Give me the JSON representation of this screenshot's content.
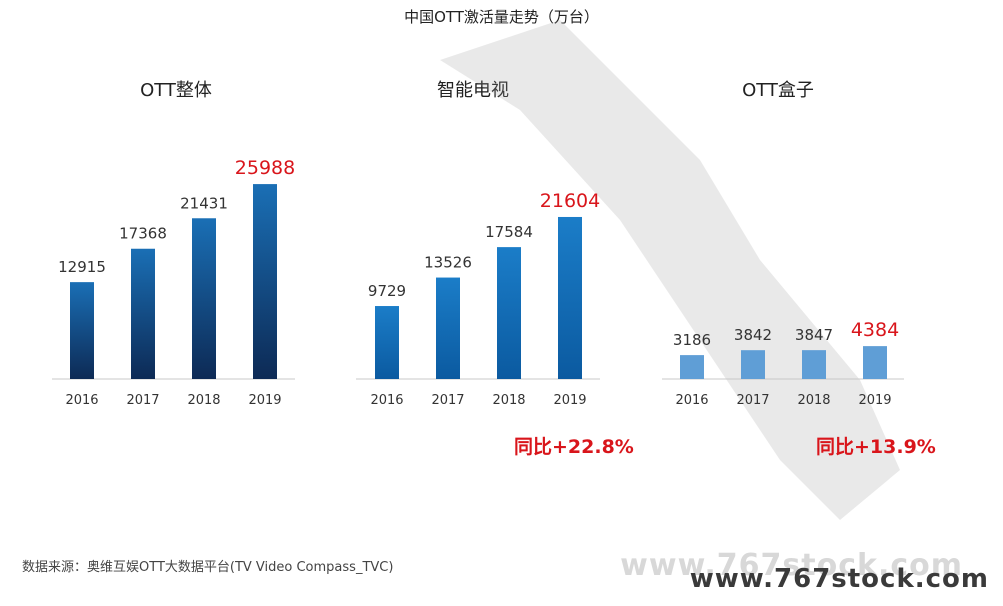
{
  "title": "中国OTT激活量走势（万台）",
  "source_note": "数据来源：奥维互娱OTT大数据平台(TV Video Compass_TVC)",
  "watermark_site": "www.767stock.com",
  "colors": {
    "highlight": "#d9151b",
    "total_top": "#1a6fb5",
    "total_bottom": "#0d2a55",
    "tv_top": "#1b7dc8",
    "tv_bottom": "#0b5aa0",
    "box": "#5f9ed6"
  },
  "panels": [
    {
      "title": "OTT整体",
      "yoy": ""
    },
    {
      "title": "智能电视",
      "yoy": "同比+22.8%"
    },
    {
      "title": "OTT盒子",
      "yoy": "同比+13.9%"
    }
  ],
  "chart_data": [
    {
      "type": "bar",
      "title": "OTT整体",
      "categories": [
        "2016",
        "2017",
        "2018",
        "2019"
      ],
      "values": [
        12915,
        17368,
        21431,
        25988
      ],
      "ylim": [
        0,
        28000
      ],
      "grid": false,
      "data_labels": true
    },
    {
      "type": "bar",
      "title": "智能电视",
      "categories": [
        "2016",
        "2017",
        "2018",
        "2019"
      ],
      "values": [
        9729,
        13526,
        17584,
        21604
      ],
      "ylim": [
        0,
        28000
      ],
      "grid": false,
      "data_labels": true,
      "annotation": "同比+22.8%"
    },
    {
      "type": "bar",
      "title": "OTT盒子",
      "categories": [
        "2016",
        "2017",
        "2018",
        "2019"
      ],
      "values": [
        3186,
        3842,
        3847,
        4384
      ],
      "ylim": [
        0,
        28000
      ],
      "grid": false,
      "data_labels": true,
      "annotation": "同比+13.9%"
    }
  ]
}
